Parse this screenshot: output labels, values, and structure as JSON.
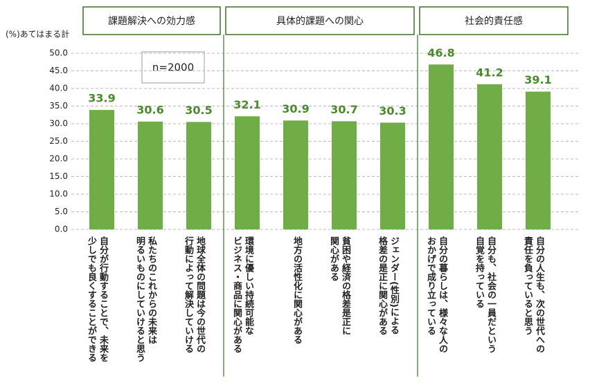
{
  "chart_data": {
    "type": "bar",
    "y_label": "(%)あてはまる計",
    "annotation": "n=2000",
    "groups": [
      "課題解決への効力感",
      "具体的課題への関心",
      "社会的責任感"
    ],
    "categories": [
      "自分が行動することで、未来を\n少しでも良くすることができる",
      "私たちのこれからの未来は\n明るいものにしていけると思う",
      "地球全体の問題は今の世代の\n行動によって解決していける",
      "環境に優しい持続可能な\nビジネス・商品に関心がある",
      "地方の活性化に関心がある",
      "貧困や経済の格差是正に\n関心がある",
      "ジェンダー(性別)による\n格差の是正に関心がある",
      "自分の暮らしは、様々な人の\nおかげで成り立っている",
      "自分も、社会の一員だという\n自覚を持っている",
      "自分の人生も、次の世代への\n責任を負っていると思う"
    ],
    "values": [
      33.9,
      30.6,
      30.5,
      32.1,
      30.9,
      30.7,
      30.3,
      46.8,
      41.2,
      39.1
    ],
    "color": "#70ad47",
    "label_color": "#4a8a2c",
    "ylim": [
      0,
      50
    ],
    "yticks": [
      {
        "value": 0,
        "label": "0.0"
      },
      {
        "value": 5,
        "label": "5.0"
      },
      {
        "value": 10,
        "label": "10.0"
      },
      {
        "value": 15,
        "label": "15.0"
      },
      {
        "value": 20,
        "label": "20.0"
      },
      {
        "value": 25,
        "label": "25.0"
      },
      {
        "value": 30,
        "label": "30.0"
      },
      {
        "value": 35,
        "label": "35.0"
      },
      {
        "value": 40,
        "label": "40.0"
      },
      {
        "value": 45,
        "label": "45.0"
      },
      {
        "value": 50,
        "label": "50.0"
      }
    ],
    "grid": true
  }
}
